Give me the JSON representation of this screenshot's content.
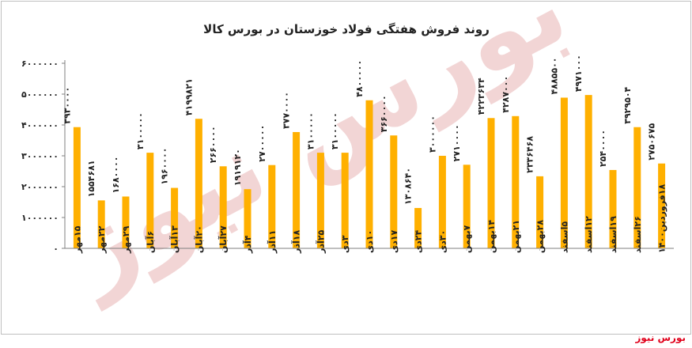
{
  "source_label": "بورس نیوز",
  "colors": {
    "bar": "#FFB000",
    "axis": "#7f7f7f",
    "text": "#222222",
    "source": "#e0001b",
    "watermark": "#e8b4b4"
  },
  "chart_data": {
    "type": "bar",
    "title": "روند فروش هفتگی فولاد خوزستان در بورس کالا",
    "xlabel": "",
    "ylabel": "",
    "ylim": [
      0,
      6000000
    ],
    "yticks": [
      0,
      1000000,
      2000000,
      3000000,
      4000000,
      5000000,
      6000000
    ],
    "ytick_labels": [
      "۰",
      "۱۰۰۰۰۰۰",
      "۲۰۰۰۰۰۰",
      "۳۰۰۰۰۰۰",
      "۴۰۰۰۰۰۰",
      "۵۰۰۰۰۰۰",
      "۶۰۰۰۰۰۰"
    ],
    "grid": false,
    "legend": "none",
    "categories": [
      "۱۵مهر",
      "۲۲مهر",
      "۲۹مهر",
      "۶آبان",
      "۱۳آبان",
      "۲۰آبان",
      "۲۷آبان",
      "۴آذر",
      "۱۱آذر",
      "۱۸آذر",
      "۲۵آذر",
      "۳دی",
      "۱۰دی",
      "۱۷دی",
      "۲۴دی",
      "۳۰دی",
      "۷بهمن",
      "۱۴بهمن",
      "۲۱بهمن",
      "۲۸بهمن",
      "۵اسفند",
      "۱۲اسفند",
      "۱۹اسفند",
      "۲۶اسفند",
      "۱۸فروردین۱۴۰۰"
    ],
    "values": [
      3930000,
      1554681,
      1680000,
      3100000,
      1960000,
      4199821,
      2660000,
      1919120,
      2700000,
      3770000,
      3100000,
      3100000,
      4800000,
      3660000,
      1308640,
      3000000,
      2710000,
      4223634,
      4287000,
      2336468,
      4885500,
      4971000,
      2540000,
      3929504,
      2750675
    ],
    "data_labels": [
      "۳۹۳۰۰۰۰",
      "۱۵۵۴۶۸۱",
      "۱۶۸۰۰۰۰",
      "۳۱۰۰۰۰۰",
      "۱۹۶۰۰۰۰",
      "۴۱۹۹۸۲۱",
      "۲۶۶۰۰۰۰",
      "۱۹۱۹۱۲۰",
      "۲۷۰۰۰۰۰",
      "۳۷۷۰۰۰۰",
      "۳۱۰۰۰۰۰",
      "۳۱۰۰۰۰۰",
      "۴۸۰۰۰۰۰",
      "۳۶۶۰۰۰۰",
      "۱۳۰۸۶۴۰",
      "۳۰۰۰۰۰۰",
      "۲۷۱۰۰۰۰",
      "۴۲۲۳۶۳۴",
      "۴۲۸۷۰۰۰",
      "۲۳۳۶۴۶۸",
      "۴۸۸۵۵۰۰",
      "۴۹۷۱۰۰۰",
      "۲۵۴۰۰۰۰",
      "۳۹۲۹۵۰۴",
      "۲۷۵۰۶۷۵"
    ],
    "watermark": "بورس نیوز"
  }
}
